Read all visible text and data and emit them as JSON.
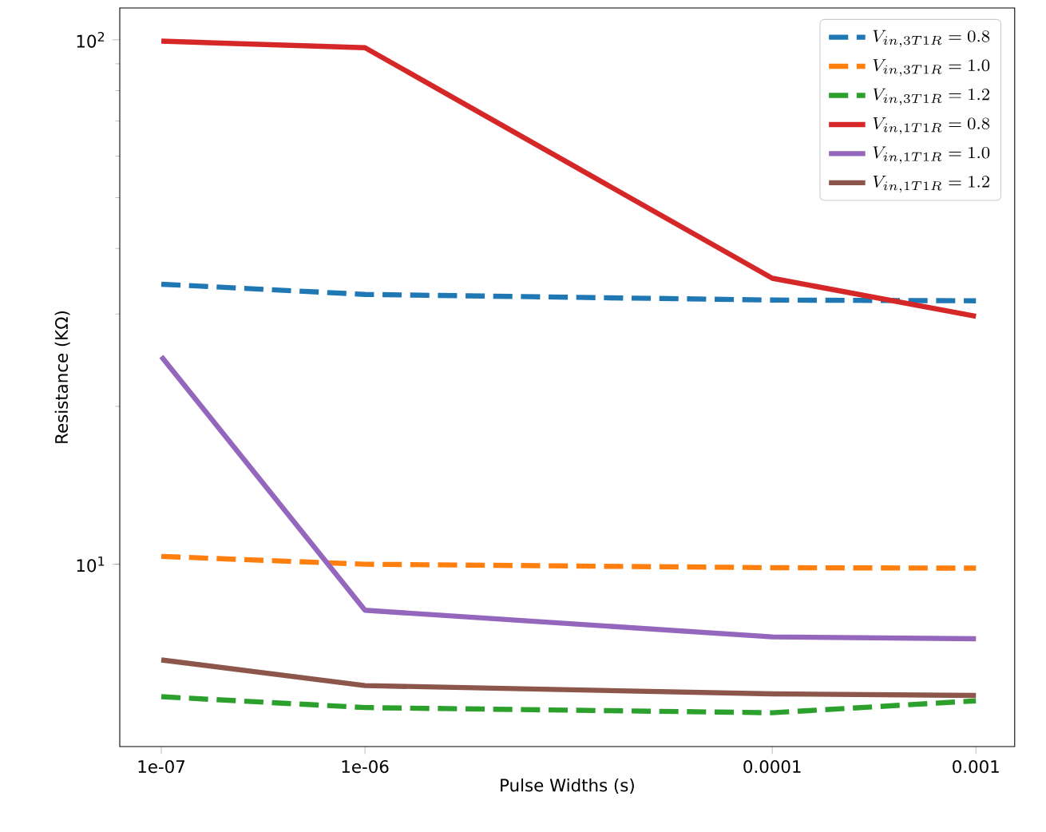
{
  "chart_data": {
    "type": "line",
    "xlabel": "Pulse Widths (s)",
    "ylabel": "Resistance (KΩ)",
    "log": "xy",
    "legend": "top right",
    "x": [
      1e-07,
      1e-06,
      0.0001,
      0.001
    ],
    "xlim": [
      6.25e-08,
      0.00155
    ],
    "ylim": [
      4.49,
      115
    ],
    "xticks": [
      {
        "value": 1e-07,
        "label": "1e-07"
      },
      {
        "value": 1e-06,
        "label": "1e-06"
      },
      0.0001,
      0.001
    ],
    "yticks": [
      {
        "value": 10,
        "label": "10$^{1}$"
      },
      {
        "value": 100,
        "label": "10$^{2}$"
      }
    ],
    "series": [
      {
        "name": "V_{in,3T1R}=0.8",
        "color": "#1f77b4",
        "line_style": "dashed",
        "values": [
          34.2,
          32.7,
          31.9,
          31.8
        ]
      },
      {
        "name": "V_{in,3T1R}=1.0",
        "color": "#ff7f0e",
        "line_style": "dashed",
        "values": [
          10.35,
          10.0,
          9.85,
          9.83
        ]
      },
      {
        "name": "V_{in,3T1R}=1.2",
        "color": "#2ca02c",
        "line_style": "dashed",
        "values": [
          5.59,
          5.33,
          5.21,
          5.49
        ]
      },
      {
        "name": "V_{in,1T1R}=0.8",
        "color": "#d62728",
        "line_style": "solid",
        "values": [
          99.4,
          96.6,
          35.1,
          29.7
        ]
      },
      {
        "name": "V_{in,1T1R}=1.0",
        "color": "#9467bd",
        "line_style": "solid",
        "values": [
          24.9,
          8.17,
          7.27,
          7.21
        ]
      },
      {
        "name": "V_{in,1T1R}=1.2",
        "color": "#8c564b",
        "line_style": "solid",
        "values": [
          6.57,
          5.87,
          5.66,
          5.62
        ]
      }
    ]
  }
}
